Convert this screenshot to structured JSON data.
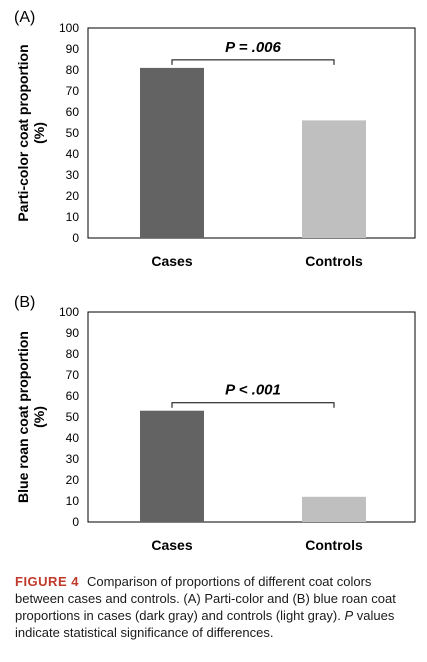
{
  "chart_data": [
    {
      "type": "bar",
      "panel_label": "(A)",
      "categories": [
        "Cases",
        "Controls"
      ],
      "values": [
        81,
        56
      ],
      "colors": [
        "#636363",
        "#bfbfbf"
      ],
      "ylabel_line1": "Parti-color coat proportion",
      "ylabel_line2": "(%)",
      "ylim": [
        0,
        100
      ],
      "yticks": [
        "0",
        "10",
        "20",
        "30",
        "40",
        "50",
        "60",
        "70",
        "80",
        "90",
        "100"
      ],
      "grid": false,
      "annotation": "P = .006"
    },
    {
      "type": "bar",
      "panel_label": "(B)",
      "categories": [
        "Cases",
        "Controls"
      ],
      "values": [
        53,
        12
      ],
      "colors": [
        "#636363",
        "#bfbfbf"
      ],
      "ylabel_line1": "Blue roan coat proportion",
      "ylabel_line2": "(%)",
      "ylim": [
        0,
        100
      ],
      "yticks": [
        "0",
        "10",
        "20",
        "30",
        "40",
        "50",
        "60",
        "70",
        "80",
        "90",
        "100"
      ],
      "grid": false,
      "annotation": "P < .001"
    }
  ],
  "caption": {
    "figure_label": "FIGURE 4",
    "text_before_p": "Comparison of proportions of different coat colors between cases and controls. (A) Parti-color and (B) blue roan coat proportions in cases (dark gray) and controls (light gray).",
    "p_italic": "P",
    "text_after_p": "values indicate statistical significance of differences."
  }
}
